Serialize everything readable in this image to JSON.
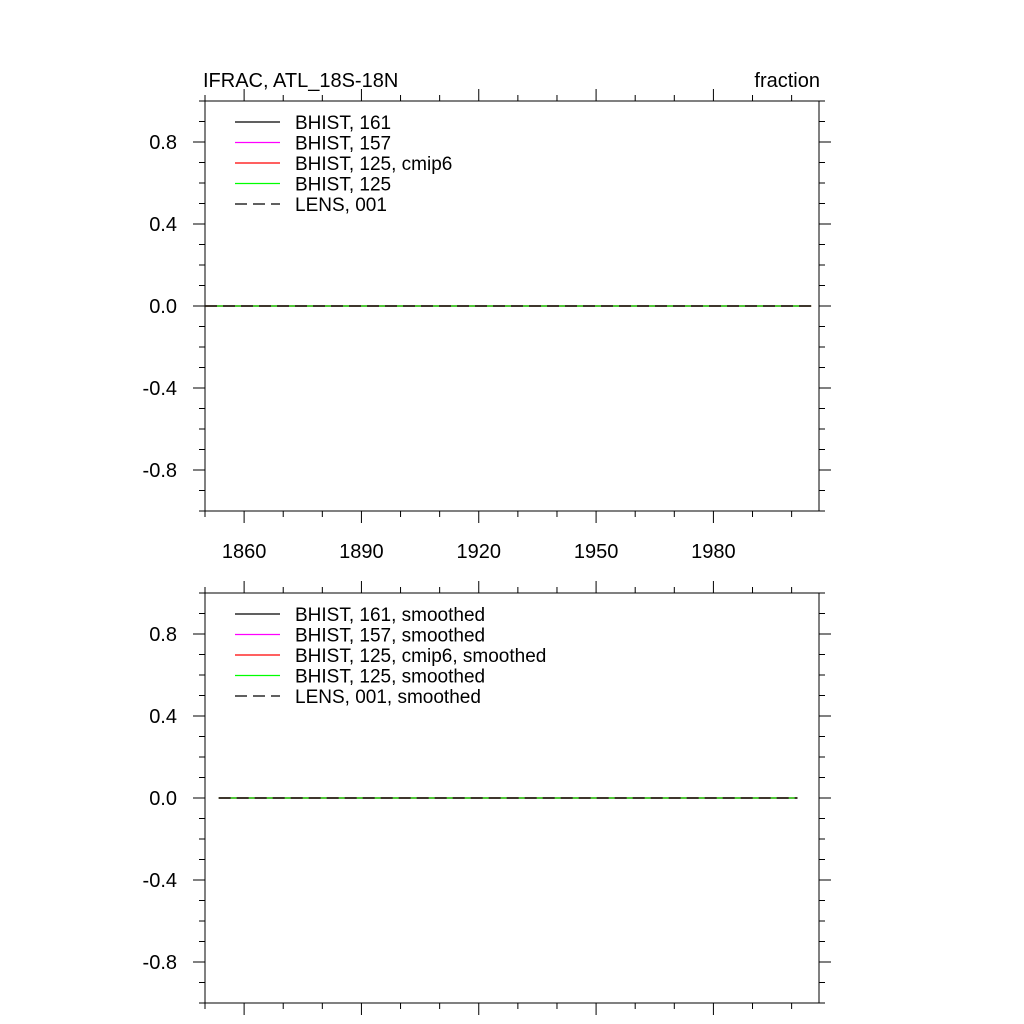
{
  "chart_data": [
    {
      "type": "line",
      "title": "IFRAC, ATL_18S-18N",
      "units": "fraction",
      "xlim": [
        1850,
        2007
      ],
      "ylim": [
        -1.0,
        1.0
      ],
      "x_ticks": [
        1860,
        1890,
        1920,
        1950,
        1980
      ],
      "x_tick_labels": [
        "1860",
        "1890",
        "1920",
        "1950",
        "1980"
      ],
      "y_ticks": [
        -0.8,
        -0.4,
        0.0,
        0.4,
        0.8
      ],
      "y_tick_labels": [
        "-0.8",
        "-0.4",
        "0.0",
        "0.4",
        "0.8"
      ],
      "legend_position": "top-left",
      "grid": false,
      "series": [
        {
          "name": "BHIST, 161",
          "color": "#000000",
          "dash": "solid",
          "x": [
            1850,
            2005
          ],
          "y": [
            0.0,
            0.0
          ]
        },
        {
          "name": "BHIST, 157",
          "color": "#ff00ff",
          "dash": "solid",
          "x": [
            1850,
            2005
          ],
          "y": [
            0.0,
            0.0
          ]
        },
        {
          "name": "BHIST, 125, cmip6",
          "color": "#ff0000",
          "dash": "solid",
          "x": [
            1850,
            2005
          ],
          "y": [
            0.0,
            0.0
          ]
        },
        {
          "name": "BHIST, 125",
          "color": "#00ff00",
          "dash": "solid",
          "x": [
            1850,
            2005
          ],
          "y": [
            0.0,
            0.0
          ]
        },
        {
          "name": "LENS, 001",
          "color": "#000000",
          "dash": "dashed",
          "x": [
            1850,
            2005
          ],
          "y": [
            0.0,
            0.0
          ]
        }
      ]
    },
    {
      "type": "line",
      "title": "",
      "xlim": [
        1850,
        2007
      ],
      "ylim": [
        -1.0,
        1.0
      ],
      "x_ticks": [
        1860,
        1890,
        1920,
        1950,
        1980
      ],
      "x_tick_labels": [],
      "y_ticks": [
        -0.8,
        -0.4,
        0.0,
        0.4,
        0.8
      ],
      "y_tick_labels": [
        "-0.8",
        "-0.4",
        "0.0",
        "0.4",
        "0.8"
      ],
      "legend_position": "top-left",
      "grid": false,
      "series": [
        {
          "name": "BHIST, 161, smoothed",
          "color": "#000000",
          "dash": "solid",
          "x": [
            1853.5,
            2001.5
          ],
          "y": [
            0.0,
            0.0
          ]
        },
        {
          "name": "BHIST, 157, smoothed",
          "color": "#ff00ff",
          "dash": "solid",
          "x": [
            1853.5,
            2001.5
          ],
          "y": [
            0.0,
            0.0
          ]
        },
        {
          "name": "BHIST, 125, cmip6, smoothed",
          "color": "#ff0000",
          "dash": "solid",
          "x": [
            1853.5,
            2001.5
          ],
          "y": [
            0.0,
            0.0
          ]
        },
        {
          "name": "BHIST, 125, smoothed",
          "color": "#00ff00",
          "dash": "solid",
          "x": [
            1853.5,
            2001.5
          ],
          "y": [
            0.0,
            0.0
          ]
        },
        {
          "name": "LENS, 001, smoothed",
          "color": "#000000",
          "dash": "dashed",
          "x": [
            1853.5,
            2001.5
          ],
          "y": [
            0.0,
            0.0
          ]
        }
      ]
    }
  ]
}
